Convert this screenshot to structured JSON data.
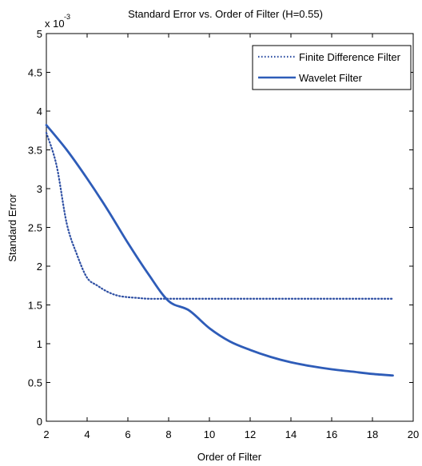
{
  "chart_data": {
    "type": "line",
    "title": "Standard Error vs. Order of Filter (H=0.55)",
    "xlabel": "Order of Filter",
    "ylabel": "Standard Error",
    "exponent_label": "x 10",
    "exponent_power": "-3",
    "xlim": [
      2,
      20
    ],
    "ylim": [
      0,
      5
    ],
    "x_ticks": [
      "2",
      "4",
      "6",
      "8",
      "10",
      "12",
      "14",
      "16",
      "18",
      "20"
    ],
    "y_ticks": [
      "0",
      "0.5",
      "1",
      "1.5",
      "2",
      "2.5",
      "3",
      "3.5",
      "4",
      "4.5",
      "5"
    ],
    "legend_position": "top-right",
    "series": [
      {
        "name": "Finite Difference Filter",
        "style": "dotted",
        "color": "#2E4FA3",
        "x": [
          2,
          2.5,
          3,
          3.5,
          4,
          4.5,
          5,
          5.5,
          6,
          6.5,
          7,
          8,
          9,
          10,
          11,
          12,
          13,
          14,
          15,
          16,
          17,
          18,
          19
        ],
        "y": [
          3.72,
          3.3,
          2.55,
          2.15,
          1.85,
          1.75,
          1.67,
          1.62,
          1.6,
          1.59,
          1.58,
          1.58,
          1.58,
          1.58,
          1.58,
          1.58,
          1.58,
          1.58,
          1.58,
          1.58,
          1.58,
          1.58,
          1.58
        ]
      },
      {
        "name": "Wavelet Filter",
        "style": "solid",
        "color": "#2E5CB8",
        "x": [
          2,
          3,
          4,
          5,
          6,
          7,
          8,
          9,
          10,
          11,
          12,
          13,
          14,
          15,
          16,
          17,
          18,
          19
        ],
        "y": [
          3.82,
          3.5,
          3.13,
          2.73,
          2.3,
          1.9,
          1.55,
          1.43,
          1.2,
          1.03,
          0.92,
          0.83,
          0.76,
          0.71,
          0.67,
          0.64,
          0.61,
          0.59
        ]
      }
    ]
  }
}
